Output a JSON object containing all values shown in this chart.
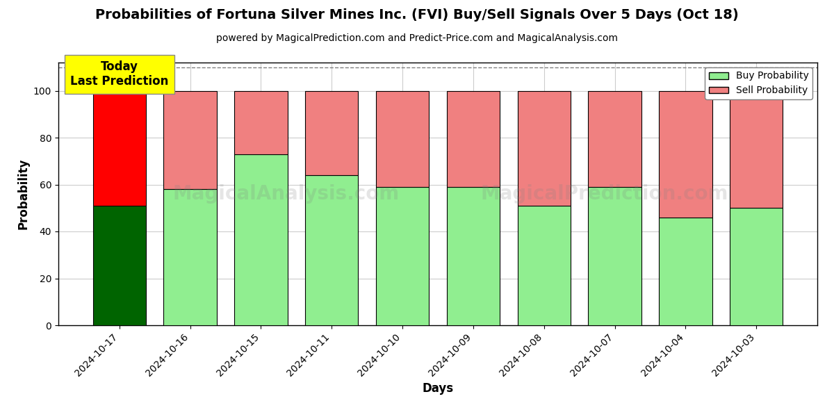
{
  "title": "Probabilities of Fortuna Silver Mines Inc. (FVI) Buy/Sell Signals Over 5 Days (Oct 18)",
  "subtitle": "powered by MagicalPrediction.com and Predict-Price.com and MagicalAnalysis.com",
  "xlabel": "Days",
  "ylabel": "Probability",
  "dates": [
    "2024-10-17",
    "2024-10-16",
    "2024-10-15",
    "2024-10-11",
    "2024-10-10",
    "2024-10-09",
    "2024-10-08",
    "2024-10-07",
    "2024-10-04",
    "2024-10-03"
  ],
  "buy_probs": [
    51,
    58,
    73,
    64,
    59,
    59,
    51,
    59,
    46,
    50
  ],
  "sell_probs": [
    49,
    42,
    27,
    36,
    41,
    41,
    49,
    41,
    54,
    50
  ],
  "today_buy_color": "#006400",
  "today_sell_color": "#ff0000",
  "buy_color": "#90ee90",
  "sell_color": "#f08080",
  "bar_edgecolor": "#000000",
  "today_label_bg": "#ffff00",
  "today_label_text": "Today\nLast Prediction",
  "ylim": [
    0,
    112
  ],
  "dashed_line_y": 110,
  "legend_buy": "Buy Probability",
  "legend_sell": "Sell Probability",
  "background_color": "#ffffff",
  "grid_color": "#cccccc"
}
